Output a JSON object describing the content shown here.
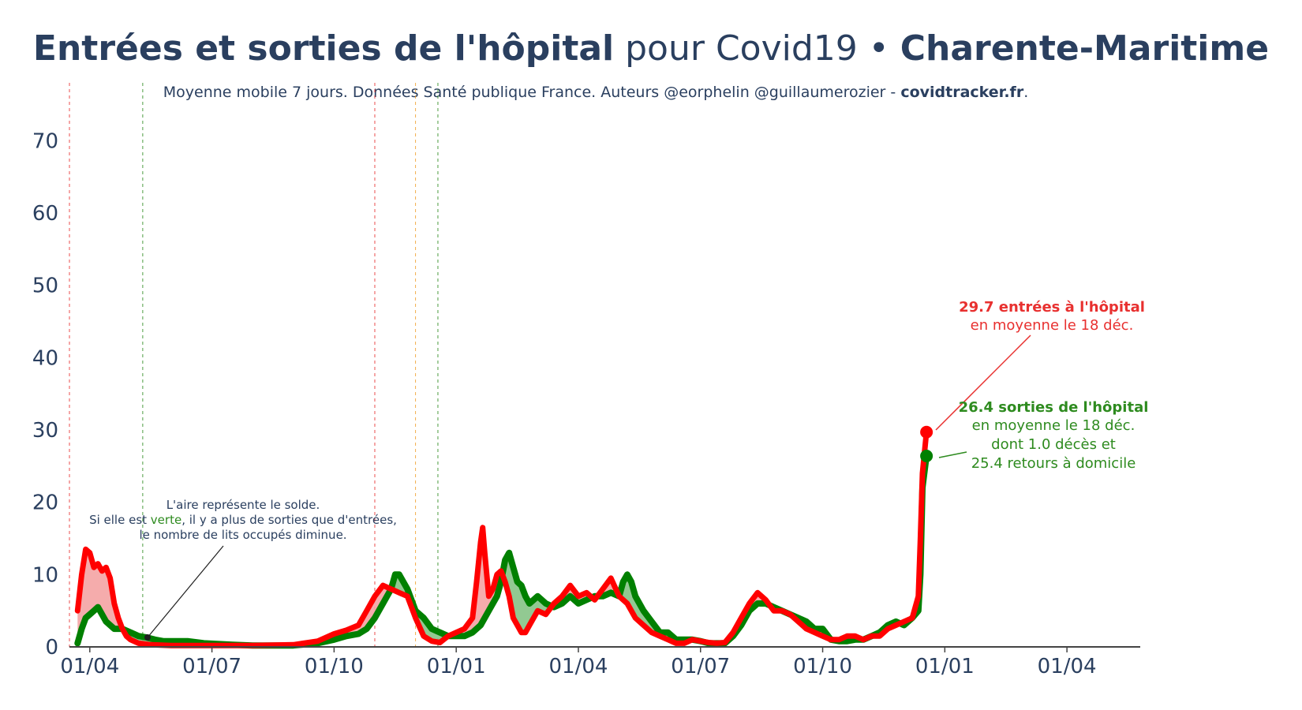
{
  "header": {
    "title_part1": "Entrées et sorties de l'hôpital",
    "title_part2": " pour Covid19 • ",
    "title_part3": "Charente-Maritime",
    "subtitle_part1": "Moyenne mobile 7 jours. Données Santé publique France. Auteurs @eorphelin @guillaumerozier - ",
    "subtitle_part2": "covidtracker.fr",
    "subtitle_part3": "."
  },
  "colors": {
    "entries": "#ff0000",
    "exits": "#008000",
    "area_positive": "#f4a3a3",
    "area_negative": "#86c386",
    "text": "#2a3f5f",
    "annotation_red": "#e8302f",
    "annotation_green": "#2e8b1f"
  },
  "annotations": {
    "entries_line1": "29.7 entrées à l'hôpital",
    "entries_line2": "en moyenne le 18 déc.",
    "exits_line1": "26.4 sorties de l'hôpital",
    "exits_line2": "en moyenne le 18 déc.",
    "exits_line3": "dont 1.0 décès et",
    "exits_line4": "25.4 retours à domicile",
    "area_line1": "L'aire représente le solde.",
    "area_line2_a": "Si elle est ",
    "area_line2_b": "verte",
    "area_line2_c": ", il y a plus de sorties que d'entrées,",
    "area_line3": "le nombre de lits occupés diminue."
  },
  "chart_data": {
    "type": "line",
    "title": "Entrées et sorties de l'hôpital pour Covid19 • Charente-Maritime",
    "xlabel": "",
    "ylabel": "",
    "x_ticks": [
      "01/04",
      "01/07",
      "01/10",
      "01/01",
      "01/04",
      "01/07",
      "01/10",
      "01/01",
      "01/04"
    ],
    "y_ticks": [
      "0",
      "10",
      "20",
      "30",
      "40",
      "50",
      "60",
      "70"
    ],
    "ylim": [
      0,
      78
    ],
    "x_range_months": [
      -0.5,
      25.8
    ],
    "grid": false,
    "legend": "none",
    "reference_lines": [
      {
        "month": -0.5,
        "color": "#e8302f"
      },
      {
        "month": 1.3,
        "color": "#2e8b1f"
      },
      {
        "month": 7.0,
        "color": "#e8302f"
      },
      {
        "month": 8.0,
        "color": "#f0a030"
      },
      {
        "month": 8.55,
        "color": "#2e8b1f"
      }
    ],
    "series": [
      {
        "name": "entrées à l'hôpital",
        "color": "#ff0000",
        "points": [
          [
            -0.3,
            5
          ],
          [
            -0.2,
            10
          ],
          [
            -0.1,
            13.5
          ],
          [
            0,
            13
          ],
          [
            0.1,
            11
          ],
          [
            0.2,
            11.5
          ],
          [
            0.3,
            10.5
          ],
          [
            0.4,
            11
          ],
          [
            0.5,
            9.5
          ],
          [
            0.6,
            6
          ],
          [
            0.7,
            4
          ],
          [
            0.8,
            2.5
          ],
          [
            0.9,
            1.5
          ],
          [
            1.0,
            1
          ],
          [
            1.2,
            0.5
          ],
          [
            1.5,
            0.3
          ],
          [
            2,
            0.2
          ],
          [
            3,
            0.2
          ],
          [
            4,
            0.2
          ],
          [
            5,
            0.3
          ],
          [
            5.6,
            0.8
          ],
          [
            6,
            1.8
          ],
          [
            6.3,
            2.3
          ],
          [
            6.6,
            3
          ],
          [
            6.8,
            5
          ],
          [
            7,
            7
          ],
          [
            7.2,
            8.5
          ],
          [
            7.4,
            8
          ],
          [
            7.6,
            7.5
          ],
          [
            7.8,
            7
          ],
          [
            8,
            4
          ],
          [
            8.2,
            1.5
          ],
          [
            8.4,
            0.8
          ],
          [
            8.6,
            0.6
          ],
          [
            8.8,
            1.5
          ],
          [
            9,
            2
          ],
          [
            9.2,
            2.5
          ],
          [
            9.4,
            4
          ],
          [
            9.5,
            9
          ],
          [
            9.6,
            14.5
          ],
          [
            9.65,
            16.5
          ],
          [
            9.7,
            13
          ],
          [
            9.8,
            7
          ],
          [
            9.9,
            8
          ],
          [
            10,
            10
          ],
          [
            10.1,
            10.5
          ],
          [
            10.2,
            9
          ],
          [
            10.3,
            7
          ],
          [
            10.4,
            4
          ],
          [
            10.5,
            3
          ],
          [
            10.6,
            2
          ],
          [
            10.7,
            2
          ],
          [
            10.8,
            3
          ],
          [
            11,
            5
          ],
          [
            11.2,
            4.5
          ],
          [
            11.4,
            6
          ],
          [
            11.6,
            7
          ],
          [
            11.8,
            8.5
          ],
          [
            12,
            7
          ],
          [
            12.2,
            7.5
          ],
          [
            12.4,
            6.5
          ],
          [
            12.6,
            8
          ],
          [
            12.8,
            9.5
          ],
          [
            13,
            7
          ],
          [
            13.2,
            6
          ],
          [
            13.4,
            4
          ],
          [
            13.6,
            3
          ],
          [
            13.8,
            2
          ],
          [
            14,
            1.5
          ],
          [
            14.2,
            1
          ],
          [
            14.4,
            0.5
          ],
          [
            14.6,
            0.5
          ],
          [
            14.8,
            1
          ],
          [
            15,
            0.8
          ],
          [
            15.2,
            0.6
          ],
          [
            15.4,
            0.5
          ],
          [
            15.6,
            0.6
          ],
          [
            15.8,
            2
          ],
          [
            16,
            4
          ],
          [
            16.2,
            6
          ],
          [
            16.4,
            7.5
          ],
          [
            16.6,
            6.5
          ],
          [
            16.8,
            5
          ],
          [
            17,
            5
          ],
          [
            17.2,
            4.5
          ],
          [
            17.4,
            3.5
          ],
          [
            17.6,
            2.5
          ],
          [
            17.8,
            2
          ],
          [
            18,
            1.5
          ],
          [
            18.2,
            1
          ],
          [
            18.4,
            1
          ],
          [
            18.6,
            1.5
          ],
          [
            18.8,
            1.5
          ],
          [
            19,
            1
          ],
          [
            19.2,
            1.5
          ],
          [
            19.4,
            1.5
          ],
          [
            19.6,
            2.5
          ],
          [
            19.8,
            3
          ],
          [
            20,
            3.5
          ],
          [
            20.2,
            4
          ],
          [
            20.35,
            7
          ],
          [
            20.4,
            15
          ],
          [
            20.45,
            24
          ],
          [
            20.55,
            29.7
          ]
        ]
      },
      {
        "name": "sorties de l'hôpital",
        "color": "#008000",
        "points": [
          [
            -0.3,
            0.5
          ],
          [
            -0.2,
            2.5
          ],
          [
            -0.1,
            4
          ],
          [
            0,
            4.5
          ],
          [
            0.1,
            5
          ],
          [
            0.2,
            5.5
          ],
          [
            0.3,
            4.5
          ],
          [
            0.4,
            3.5
          ],
          [
            0.5,
            3
          ],
          [
            0.6,
            2.5
          ],
          [
            0.7,
            2.5
          ],
          [
            0.8,
            2.5
          ],
          [
            1.0,
            2
          ],
          [
            1.2,
            1.5
          ],
          [
            1.4,
            1.3
          ],
          [
            1.6,
            1
          ],
          [
            1.8,
            0.8
          ],
          [
            2,
            0.8
          ],
          [
            2.4,
            0.8
          ],
          [
            2.8,
            0.5
          ],
          [
            3.5,
            0.3
          ],
          [
            4,
            0.2
          ],
          [
            5,
            0.2
          ],
          [
            5.6,
            0.5
          ],
          [
            6,
            1
          ],
          [
            6.3,
            1.5
          ],
          [
            6.6,
            1.8
          ],
          [
            6.8,
            2.5
          ],
          [
            7,
            4
          ],
          [
            7.2,
            6
          ],
          [
            7.4,
            8
          ],
          [
            7.5,
            10
          ],
          [
            7.6,
            10
          ],
          [
            7.8,
            8
          ],
          [
            8,
            5
          ],
          [
            8.2,
            4
          ],
          [
            8.4,
            2.5
          ],
          [
            8.6,
            2
          ],
          [
            8.8,
            1.5
          ],
          [
            9,
            1.5
          ],
          [
            9.2,
            1.5
          ],
          [
            9.4,
            2
          ],
          [
            9.6,
            3
          ],
          [
            9.8,
            5
          ],
          [
            10,
            7
          ],
          [
            10.1,
            9
          ],
          [
            10.2,
            12
          ],
          [
            10.3,
            13
          ],
          [
            10.4,
            11
          ],
          [
            10.5,
            9
          ],
          [
            10.6,
            8.5
          ],
          [
            10.7,
            7
          ],
          [
            10.8,
            6
          ],
          [
            11,
            7
          ],
          [
            11.2,
            6
          ],
          [
            11.4,
            5.5
          ],
          [
            11.6,
            6
          ],
          [
            11.8,
            7
          ],
          [
            12,
            6
          ],
          [
            12.2,
            6.5
          ],
          [
            12.4,
            7
          ],
          [
            12.6,
            7
          ],
          [
            12.8,
            7.5
          ],
          [
            13,
            7
          ],
          [
            13.1,
            9
          ],
          [
            13.2,
            10
          ],
          [
            13.3,
            9
          ],
          [
            13.4,
            7
          ],
          [
            13.6,
            5
          ],
          [
            13.8,
            3.5
          ],
          [
            14,
            2
          ],
          [
            14.2,
            2
          ],
          [
            14.4,
            1
          ],
          [
            14.6,
            1
          ],
          [
            14.8,
            1
          ],
          [
            15,
            0.8
          ],
          [
            15.2,
            0.5
          ],
          [
            15.4,
            0.5
          ],
          [
            15.6,
            0.5
          ],
          [
            15.8,
            1.5
          ],
          [
            16,
            3
          ],
          [
            16.2,
            5
          ],
          [
            16.4,
            6
          ],
          [
            16.6,
            6
          ],
          [
            16.8,
            5.5
          ],
          [
            17,
            5
          ],
          [
            17.2,
            4.5
          ],
          [
            17.4,
            4
          ],
          [
            17.6,
            3.5
          ],
          [
            17.8,
            2.5
          ],
          [
            18,
            2.5
          ],
          [
            18.2,
            1
          ],
          [
            18.4,
            0.8
          ],
          [
            18.6,
            0.8
          ],
          [
            18.8,
            1
          ],
          [
            19,
            1
          ],
          [
            19.2,
            1.5
          ],
          [
            19.4,
            2
          ],
          [
            19.6,
            3
          ],
          [
            19.8,
            3.5
          ],
          [
            20,
            3
          ],
          [
            20.2,
            4
          ],
          [
            20.35,
            5
          ],
          [
            20.4,
            10
          ],
          [
            20.45,
            22
          ],
          [
            20.55,
            26.4
          ]
        ]
      }
    ]
  }
}
